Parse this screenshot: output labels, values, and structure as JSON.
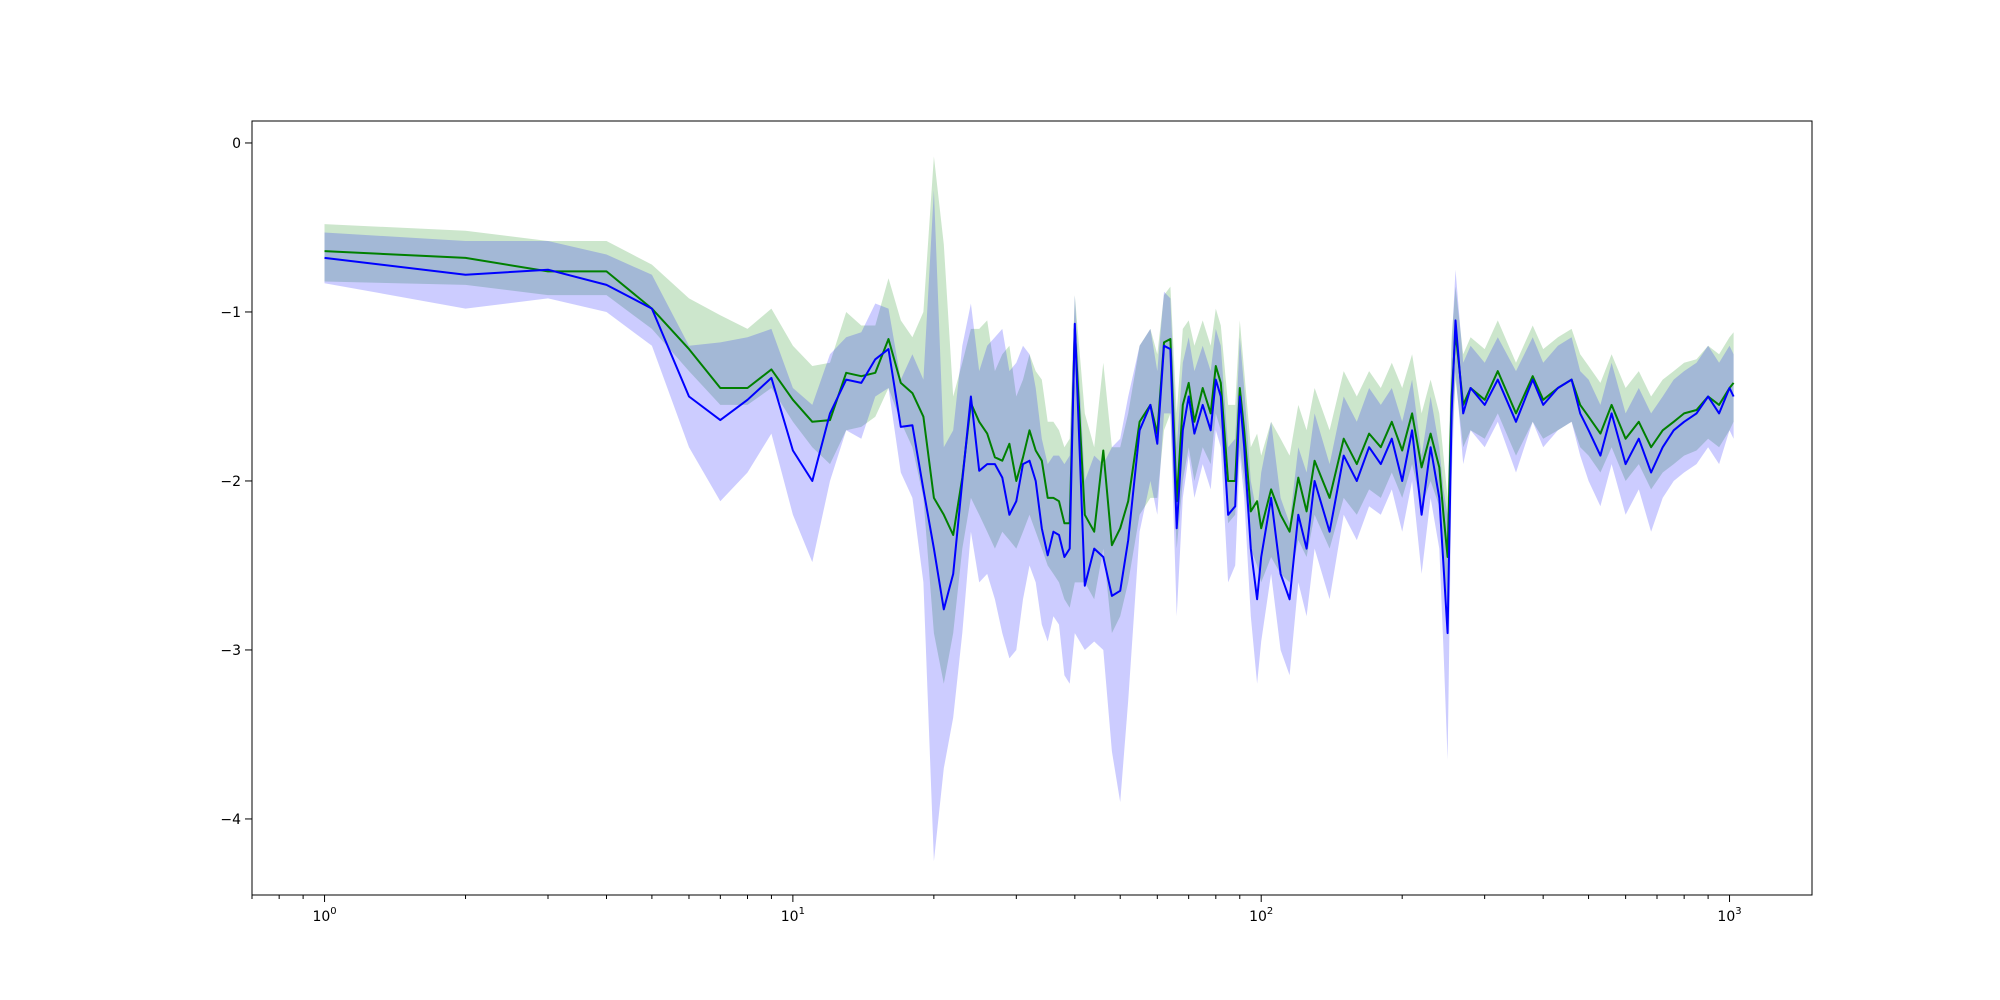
{
  "chart_data": {
    "type": "line",
    "title": "",
    "xlabel": "",
    "ylabel": "",
    "xscale": "log",
    "xlim": [
      0.7,
      1500
    ],
    "ylim": [
      -4.45,
      0.13
    ],
    "grid": false,
    "legend": "none",
    "xticks": [
      {
        "base": "10",
        "exp": "0",
        "value": 1
      },
      {
        "base": "10",
        "exp": "1",
        "value": 10
      },
      {
        "base": "10",
        "exp": "2",
        "value": 100
      },
      {
        "base": "10",
        "exp": "3",
        "value": 1000
      }
    ],
    "yticks": [
      {
        "label": "0",
        "value": 0
      },
      {
        "label": "−1",
        "value": -1
      },
      {
        "label": "−2",
        "value": -2
      },
      {
        "label": "−3",
        "value": -3
      },
      {
        "label": "−4",
        "value": -4
      }
    ],
    "colors": {
      "green_line": "#008000",
      "blue_line": "#0000ff",
      "green_band": "#008000",
      "blue_band": "#0000ff"
    },
    "series": [
      {
        "color": "green",
        "x": [
          1,
          2,
          3,
          4,
          5,
          6,
          7,
          8,
          9,
          10,
          11,
          12,
          13,
          14,
          15,
          16,
          17,
          18,
          19,
          20,
          21,
          22,
          23,
          24,
          25,
          26,
          27,
          28,
          29,
          30,
          31,
          32,
          33,
          34,
          35,
          36,
          37,
          38,
          39,
          40,
          42,
          44,
          46,
          48,
          50,
          52,
          55,
          58,
          60,
          62,
          64,
          66,
          68,
          70,
          72,
          75,
          78,
          80,
          82,
          85,
          88,
          90,
          92,
          95,
          98,
          100,
          105,
          110,
          115,
          120,
          125,
          130,
          140,
          150,
          160,
          170,
          180,
          190,
          200,
          210,
          220,
          230,
          240,
          245,
          250,
          255,
          260,
          270,
          280,
          300,
          320,
          350,
          380,
          400,
          430,
          460,
          480,
          500,
          530,
          560,
          600,
          640,
          680,
          720,
          760,
          800,
          850,
          900,
          950,
          1000,
          1020
        ],
        "mean": [
          -0.64,
          -0.68,
          -0.76,
          -0.76,
          -0.98,
          -1.22,
          -1.45,
          -1.45,
          -1.34,
          -1.52,
          -1.65,
          -1.64,
          -1.36,
          -1.38,
          -1.36,
          -1.16,
          -1.42,
          -1.48,
          -1.62,
          -2.1,
          -2.2,
          -2.32,
          -1.98,
          -1.54,
          -1.65,
          -1.72,
          -1.86,
          -1.88,
          -1.78,
          -2.0,
          -1.86,
          -1.7,
          -1.82,
          -1.88,
          -2.1,
          -2.1,
          -2.12,
          -2.25,
          -2.25,
          -1.1,
          -2.2,
          -2.3,
          -1.82,
          -2.38,
          -2.28,
          -2.12,
          -1.65,
          -1.55,
          -1.72,
          -1.18,
          -1.16,
          -2.12,
          -1.55,
          -1.42,
          -1.65,
          -1.45,
          -1.6,
          -1.32,
          -1.42,
          -2.0,
          -2.0,
          -1.45,
          -1.7,
          -2.18,
          -2.12,
          -2.28,
          -2.05,
          -2.2,
          -2.3,
          -1.98,
          -2.18,
          -1.88,
          -2.1,
          -1.75,
          -1.9,
          -1.72,
          -1.8,
          -1.65,
          -1.82,
          -1.6,
          -1.92,
          -1.72,
          -1.92,
          -2.2,
          -2.45,
          -1.5,
          -1.12,
          -1.55,
          -1.45,
          -1.52,
          -1.35,
          -1.6,
          -1.38,
          -1.52,
          -1.45,
          -1.4,
          -1.55,
          -1.62,
          -1.72,
          -1.55,
          -1.75,
          -1.65,
          -1.8,
          -1.7,
          -1.65,
          -1.6,
          -1.58,
          -1.5,
          -1.55,
          -1.45,
          -1.42
        ],
        "lower": [
          -0.82,
          -0.84,
          -0.9,
          -0.9,
          -1.1,
          -1.35,
          -1.55,
          -1.55,
          -1.45,
          -1.65,
          -1.8,
          -1.9,
          -1.7,
          -1.68,
          -1.62,
          -1.45,
          -1.65,
          -1.8,
          -2.1,
          -2.9,
          -3.2,
          -2.9,
          -2.4,
          -2.1,
          -2.2,
          -2.3,
          -2.4,
          -2.3,
          -2.35,
          -2.4,
          -2.3,
          -2.2,
          -2.3,
          -2.4,
          -2.5,
          -2.55,
          -2.6,
          -2.7,
          -2.75,
          -2.6,
          -2.6,
          -2.7,
          -2.4,
          -2.9,
          -2.8,
          -2.6,
          -2.2,
          -2.1,
          -2.1,
          -1.7,
          -1.6,
          -2.4,
          -2.0,
          -1.8,
          -2.0,
          -1.8,
          -1.9,
          -1.6,
          -1.7,
          -2.25,
          -2.2,
          -1.8,
          -2.0,
          -2.4,
          -2.5,
          -2.6,
          -2.45,
          -2.55,
          -2.6,
          -2.35,
          -2.45,
          -2.2,
          -2.4,
          -2.1,
          -2.2,
          -2.05,
          -2.1,
          -1.95,
          -2.1,
          -1.9,
          -2.15,
          -2.0,
          -2.15,
          -2.5,
          -2.75,
          -1.8,
          -1.4,
          -1.8,
          -1.7,
          -1.75,
          -1.6,
          -1.85,
          -1.65,
          -1.75,
          -1.7,
          -1.65,
          -1.8,
          -1.85,
          -1.95,
          -1.8,
          -2.0,
          -1.9,
          -2.05,
          -1.95,
          -1.9,
          -1.85,
          -1.82,
          -1.75,
          -1.8,
          -1.7,
          -1.65
        ],
        "upper": [
          -0.48,
          -0.52,
          -0.58,
          -0.58,
          -0.72,
          -0.92,
          -1.02,
          -1.1,
          -0.98,
          -1.2,
          -1.32,
          -1.3,
          -1.0,
          -1.08,
          -1.08,
          -0.8,
          -1.05,
          -1.15,
          -1.0,
          -0.08,
          -0.6,
          -1.5,
          -1.3,
          -1.1,
          -1.1,
          -1.05,
          -1.35,
          -1.25,
          -1.2,
          -1.5,
          -1.4,
          -1.25,
          -1.35,
          -1.4,
          -1.65,
          -1.65,
          -1.7,
          -1.8,
          -1.75,
          -0.9,
          -1.6,
          -1.8,
          -1.3,
          -1.8,
          -1.8,
          -1.6,
          -1.2,
          -1.1,
          -1.25,
          -0.9,
          -0.85,
          -1.6,
          -1.1,
          -1.05,
          -1.2,
          -1.05,
          -1.2,
          -0.98,
          -1.08,
          -1.55,
          -1.55,
          -1.05,
          -1.35,
          -1.8,
          -1.72,
          -1.85,
          -1.65,
          -1.75,
          -1.85,
          -1.55,
          -1.7,
          -1.45,
          -1.7,
          -1.35,
          -1.5,
          -1.35,
          -1.45,
          -1.3,
          -1.45,
          -1.25,
          -1.6,
          -1.4,
          -1.6,
          -1.85,
          -2.1,
          -1.15,
          -0.85,
          -1.25,
          -1.15,
          -1.22,
          -1.05,
          -1.3,
          -1.08,
          -1.22,
          -1.15,
          -1.1,
          -1.25,
          -1.32,
          -1.42,
          -1.25,
          -1.45,
          -1.35,
          -1.5,
          -1.4,
          -1.35,
          -1.3,
          -1.28,
          -1.2,
          -1.25,
          -1.15,
          -1.12
        ]
      },
      {
        "color": "blue",
        "x": [
          1,
          2,
          3,
          4,
          5,
          6,
          7,
          8,
          9,
          10,
          11,
          12,
          13,
          14,
          15,
          16,
          17,
          18,
          19,
          20,
          21,
          22,
          23,
          24,
          25,
          26,
          27,
          28,
          29,
          30,
          31,
          32,
          33,
          34,
          35,
          36,
          37,
          38,
          39,
          40,
          42,
          44,
          46,
          48,
          50,
          52,
          55,
          58,
          60,
          62,
          64,
          66,
          68,
          70,
          72,
          75,
          78,
          80,
          82,
          85,
          88,
          90,
          92,
          95,
          98,
          100,
          105,
          110,
          115,
          120,
          125,
          130,
          140,
          150,
          160,
          170,
          180,
          190,
          200,
          210,
          220,
          230,
          240,
          245,
          250,
          255,
          260,
          270,
          280,
          300,
          320,
          350,
          380,
          400,
          430,
          460,
          480,
          500,
          530,
          560,
          600,
          640,
          680,
          720,
          760,
          800,
          850,
          900,
          950,
          1000,
          1020
        ],
        "mean": [
          -0.68,
          -0.78,
          -0.75,
          -0.84,
          -0.98,
          -1.5,
          -1.64,
          -1.52,
          -1.39,
          -1.82,
          -2.0,
          -1.6,
          -1.4,
          -1.42,
          -1.28,
          -1.22,
          -1.68,
          -1.67,
          -2.05,
          -2.4,
          -2.76,
          -2.55,
          -2.0,
          -1.5,
          -1.94,
          -1.9,
          -1.9,
          -1.98,
          -2.2,
          -2.12,
          -1.9,
          -1.88,
          -2.0,
          -2.28,
          -2.44,
          -2.3,
          -2.32,
          -2.45,
          -2.4,
          -1.07,
          -2.62,
          -2.4,
          -2.45,
          -2.68,
          -2.65,
          -2.35,
          -1.7,
          -1.55,
          -1.78,
          -1.2,
          -1.22,
          -2.28,
          -1.7,
          -1.5,
          -1.72,
          -1.55,
          -1.7,
          -1.4,
          -1.5,
          -2.2,
          -2.15,
          -1.5,
          -1.8,
          -2.4,
          -2.7,
          -2.45,
          -2.1,
          -2.55,
          -2.7,
          -2.2,
          -2.4,
          -2.0,
          -2.3,
          -1.85,
          -2.0,
          -1.8,
          -1.9,
          -1.75,
          -2.0,
          -1.7,
          -2.2,
          -1.8,
          -2.1,
          -2.5,
          -2.9,
          -1.6,
          -1.05,
          -1.6,
          -1.45,
          -1.55,
          -1.4,
          -1.65,
          -1.4,
          -1.55,
          -1.45,
          -1.4,
          -1.6,
          -1.7,
          -1.85,
          -1.6,
          -1.9,
          -1.75,
          -1.95,
          -1.8,
          -1.7,
          -1.65,
          -1.6,
          -1.5,
          -1.6,
          -1.45,
          -1.5
        ],
        "lower": [
          -0.83,
          -0.98,
          -0.92,
          -1.0,
          -1.2,
          -1.8,
          -2.12,
          -1.95,
          -1.72,
          -2.2,
          -2.48,
          -2.0,
          -1.7,
          -1.75,
          -1.5,
          -1.45,
          -1.95,
          -2.1,
          -2.6,
          -4.25,
          -3.7,
          -3.4,
          -2.9,
          -2.3,
          -2.6,
          -2.55,
          -2.7,
          -2.9,
          -3.05,
          -3.0,
          -2.7,
          -2.5,
          -2.6,
          -2.85,
          -2.95,
          -2.8,
          -2.85,
          -3.15,
          -3.2,
          -2.9,
          -3.0,
          -2.95,
          -3.0,
          -3.6,
          -3.9,
          -3.3,
          -2.3,
          -2.0,
          -2.2,
          -1.6,
          -1.6,
          -2.8,
          -2.1,
          -1.85,
          -2.1,
          -1.9,
          -2.05,
          -1.7,
          -1.8,
          -2.6,
          -2.5,
          -1.85,
          -2.1,
          -2.8,
          -3.2,
          -2.95,
          -2.55,
          -3.0,
          -3.15,
          -2.6,
          -2.8,
          -2.4,
          -2.7,
          -2.2,
          -2.35,
          -2.15,
          -2.2,
          -2.05,
          -2.3,
          -2.0,
          -2.55,
          -2.1,
          -2.4,
          -3.0,
          -3.65,
          -2.0,
          -1.35,
          -1.9,
          -1.7,
          -1.8,
          -1.65,
          -1.95,
          -1.65,
          -1.8,
          -1.7,
          -1.65,
          -1.85,
          -2.0,
          -2.15,
          -1.9,
          -2.2,
          -2.05,
          -2.3,
          -2.1,
          -2.0,
          -1.95,
          -1.9,
          -1.8,
          -1.9,
          -1.7,
          -1.75
        ],
        "upper": [
          -0.53,
          -0.58,
          -0.58,
          -0.66,
          -0.78,
          -1.2,
          -1.18,
          -1.15,
          -1.1,
          -1.45,
          -1.55,
          -1.25,
          -1.15,
          -1.12,
          -0.95,
          -0.98,
          -1.4,
          -1.25,
          -1.4,
          -0.28,
          -1.8,
          -1.7,
          -1.2,
          -0.95,
          -1.35,
          -1.2,
          -1.15,
          -1.1,
          -1.35,
          -1.3,
          -1.2,
          -1.25,
          -1.45,
          -1.75,
          -1.9,
          -1.85,
          -1.85,
          -1.9,
          -1.85,
          -0.9,
          -2.0,
          -1.85,
          -1.9,
          -1.8,
          -1.75,
          -1.5,
          -1.2,
          -1.1,
          -1.35,
          -0.88,
          -0.92,
          -1.8,
          -1.3,
          -1.15,
          -1.35,
          -1.2,
          -1.35,
          -1.1,
          -1.2,
          -1.8,
          -1.75,
          -1.15,
          -1.45,
          -2.0,
          -2.2,
          -1.95,
          -1.65,
          -2.1,
          -2.25,
          -1.8,
          -1.95,
          -1.6,
          -1.9,
          -1.5,
          -1.65,
          -1.45,
          -1.55,
          -1.45,
          -1.65,
          -1.4,
          -1.85,
          -1.5,
          -1.8,
          -2.05,
          -2.2,
          -1.2,
          -0.75,
          -1.3,
          -1.2,
          -1.3,
          -1.15,
          -1.35,
          -1.15,
          -1.3,
          -1.2,
          -1.15,
          -1.35,
          -1.4,
          -1.55,
          -1.3,
          -1.6,
          -1.45,
          -1.6,
          -1.5,
          -1.4,
          -1.35,
          -1.3,
          -1.2,
          -1.3,
          -1.2,
          -1.25
        ]
      }
    ]
  }
}
